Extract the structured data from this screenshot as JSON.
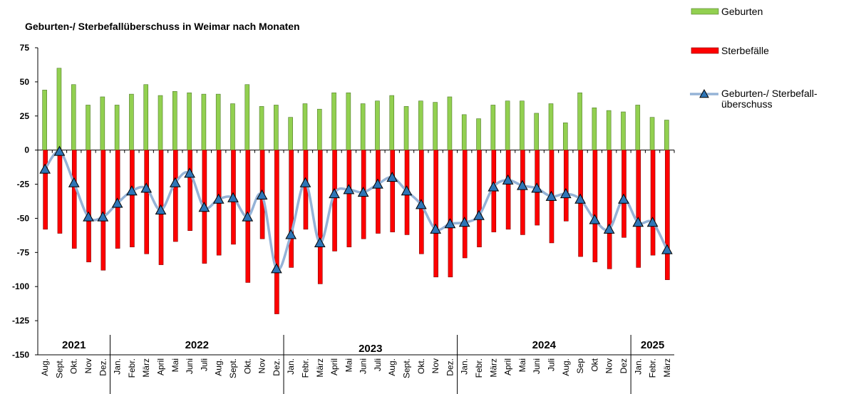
{
  "chart_data": {
    "type": "bar_line",
    "title": "Geburten-/ Sterbefallüberschuss in Weimar nach Monaten",
    "categories": [
      "Aug.",
      "Sept.",
      "Okt.",
      "Nov",
      "Dez.",
      "Jan.",
      "Febr.",
      "März",
      "April",
      "Mai",
      "Juni",
      "Juli",
      "Aug.",
      "Sept.",
      "Okt.",
      "Nov",
      "Dez.",
      "Jan.",
      "Febr.",
      "März",
      "April",
      "Mai",
      "Juni",
      "Juli",
      "Aug.",
      "Sept.",
      "Okt.",
      "Nov",
      "Dez.",
      "Jan.",
      "Febr.",
      "März",
      "April",
      "Mai",
      "Juni",
      "Juli",
      "Aug.",
      "Sep",
      "Okt",
      "Nov",
      "Dez",
      "Jan.",
      "Febr.",
      "März"
    ],
    "years": [
      "2021",
      "2022",
      "2023",
      "2024",
      "2025"
    ],
    "series": [
      {
        "name": "Geburten",
        "color": "#92d050",
        "values": [
          44,
          60,
          48,
          33,
          39,
          33,
          41,
          48,
          40,
          43,
          42,
          41,
          41,
          34,
          48,
          32,
          33,
          24,
          34,
          30,
          42,
          42,
          34,
          36,
          40,
          32,
          36,
          35,
          39,
          26,
          23,
          33,
          36,
          36,
          27,
          34,
          20,
          42,
          31,
          29,
          28,
          33,
          24,
          22
        ]
      },
      {
        "name": "Sterbefälle",
        "color": "#ff0000",
        "values": [
          -58,
          -61,
          -72,
          -82,
          -88,
          -72,
          -71,
          -76,
          -84,
          -67,
          -59,
          -83,
          -77,
          -69,
          -97,
          -65,
          -120,
          -86,
          -58,
          -98,
          -74,
          -71,
          -65,
          -61,
          -60,
          -62,
          -76,
          -93,
          -93,
          -79,
          -71,
          -60,
          -58,
          -62,
          -55,
          -68,
          -52,
          -78,
          -82,
          -87,
          -64,
          -86,
          -77,
          -95
        ]
      },
      {
        "name": "Geburten-/ Sterbefall-\nüberschuss",
        "color": "#95b3d7",
        "marker_color": "#2e75b6",
        "values": [
          -14,
          -1,
          -24,
          -49,
          -49,
          -39,
          -30,
          -28,
          -44,
          -24,
          -17,
          -42,
          -36,
          -35,
          -49,
          -33,
          -87,
          -62,
          -24,
          -68,
          -32,
          -29,
          -31,
          -25,
          -20,
          -30,
          -40,
          -58,
          -54,
          -53,
          -48,
          -27,
          -22,
          -26,
          -28,
          -34,
          -32,
          -36,
          -51,
          -58,
          -36,
          -53,
          -53,
          -73
        ]
      }
    ],
    "ylim": [
      -150,
      75
    ],
    "yticks": [
      -150,
      -125,
      -100,
      -75,
      -50,
      -25,
      0,
      25,
      50,
      75
    ]
  }
}
